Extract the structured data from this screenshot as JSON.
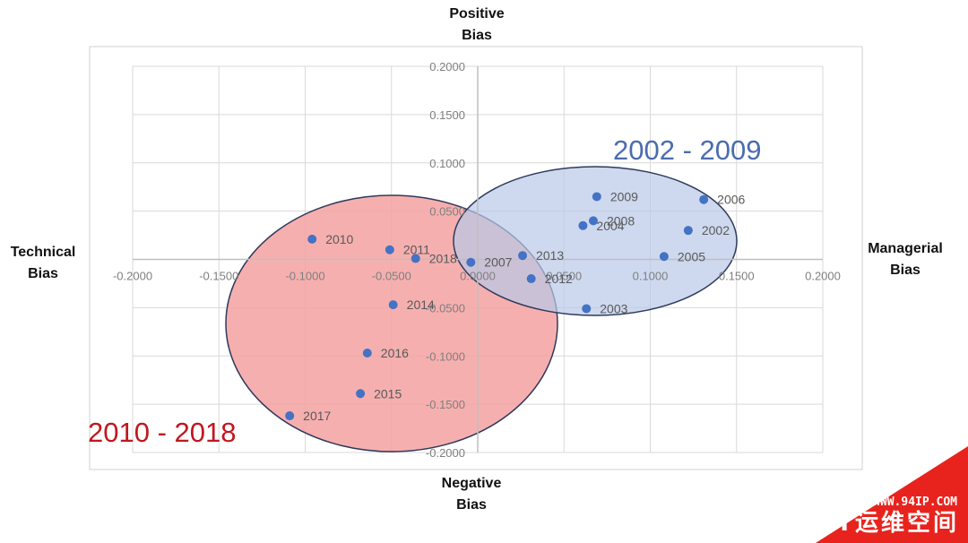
{
  "chart_data": {
    "type": "scatter",
    "axis_labels": {
      "top": [
        "Positive",
        "Bias"
      ],
      "bottom": [
        "Negative",
        "Bias"
      ],
      "left": [
        "Technical",
        "Bias"
      ],
      "right": [
        "Managerial",
        "Bias"
      ]
    },
    "xlim": [
      -0.2,
      0.2
    ],
    "ylim": [
      -0.2,
      0.2
    ],
    "x_ticks": [
      "-0.2000",
      "-0.1500",
      "-0.1000",
      "-0.0500",
      "0.0000",
      "0.0500",
      "0.1000",
      "0.1500",
      "0.2000"
    ],
    "y_ticks": [
      "0.2000",
      "0.1500",
      "0.1000",
      "0.0500",
      "-0.0500",
      "-0.1000",
      "-0.1500",
      "-0.2000"
    ],
    "grid": true,
    "marker_color": "#4472C4",
    "points": [
      {
        "label": "2002",
        "x": 0.122,
        "y": 0.03
      },
      {
        "label": "2003",
        "x": 0.063,
        "y": -0.051
      },
      {
        "label": "2004",
        "x": 0.061,
        "y": 0.035
      },
      {
        "label": "2005",
        "x": 0.108,
        "y": 0.003
      },
      {
        "label": "2006",
        "x": 0.131,
        "y": 0.062
      },
      {
        "label": "2007",
        "x": -0.004,
        "y": -0.003
      },
      {
        "label": "2008",
        "x": 0.067,
        "y": 0.04
      },
      {
        "label": "2009",
        "x": 0.069,
        "y": 0.065
      },
      {
        "label": "2010",
        "x": -0.096,
        "y": 0.021
      },
      {
        "label": "2011",
        "x": -0.051,
        "y": 0.01
      },
      {
        "label": "2012",
        "x": 0.031,
        "y": -0.02
      },
      {
        "label": "2013",
        "x": 0.026,
        "y": 0.004
      },
      {
        "label": "2014",
        "x": -0.049,
        "y": -0.047
      },
      {
        "label": "2015",
        "x": -0.068,
        "y": -0.139
      },
      {
        "label": "2016",
        "x": -0.064,
        "y": -0.097
      },
      {
        "label": "2017",
        "x": -0.109,
        "y": -0.162
      },
      {
        "label": "2018",
        "x": -0.036,
        "y": 0.001
      }
    ],
    "groups": [
      {
        "name": "2010 - 2018",
        "color": "#C0171F",
        "fill": "#F4A1A1"
      },
      {
        "name": "2002 - 2009",
        "color": "#4A6CAE",
        "fill": "#B9C9E8"
      }
    ]
  },
  "watermark": {
    "url": "WWW.94IP.COM",
    "name": "IT运维空间",
    "color": "#E8231D"
  }
}
